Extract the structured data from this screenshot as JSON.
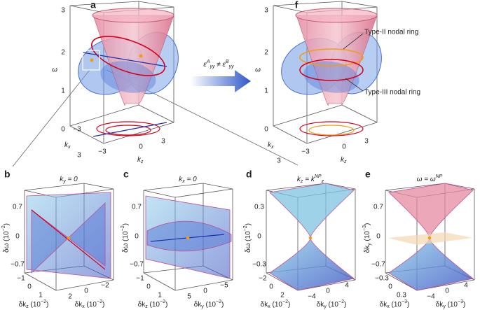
{
  "panels": [
    {
      "letter": "a",
      "z_label": "ω",
      "z_ticks": [
        "3",
        "2",
        "1"
      ],
      "kx_label": [
        {
          "t": "k"
        },
        {
          "t": "x",
          "pos": "sub"
        }
      ],
      "kx_ticks": [
        "0",
        "−3",
        "3"
      ],
      "kz_label": [
        {
          "t": "k"
        },
        {
          "t": "z",
          "pos": "sub"
        }
      ],
      "kz_ticks": [
        "−3",
        "0",
        "3"
      ]
    },
    {
      "letter": "f",
      "z_label": "ω",
      "z_ticks": [
        "3",
        "2",
        "1"
      ],
      "kx_label": [
        {
          "t": "k"
        },
        {
          "t": "x",
          "pos": "sub"
        }
      ],
      "kx_ticks": [
        "0",
        "3"
      ],
      "kz_label": [
        {
          "t": "k"
        },
        {
          "t": "z",
          "pos": "sub"
        }
      ],
      "kz_ticks": [
        "−3",
        "0",
        "3"
      ],
      "annotations": [
        "Type-II nodal ring",
        "Type-III nodal ring"
      ]
    }
  ],
  "arrow_label": [
    {
      "t": "ε"
    },
    {
      "t": "A",
      "pos": "sup"
    },
    {
      "t": "yy",
      "pos": "sub"
    },
    {
      "t": " ≠ ε"
    },
    {
      "t": "B",
      "pos": "sup"
    },
    {
      "t": "yy",
      "pos": "sub"
    }
  ],
  "insets": [
    {
      "letter": "b",
      "title": [
        {
          "t": "k"
        },
        {
          "t": "y",
          "pos": "sub"
        },
        {
          "t": " = 0"
        }
      ],
      "y_label": [
        {
          "t": "δω (10"
        },
        {
          "t": "−2",
          "pos": "sup"
        },
        {
          "t": ")"
        }
      ],
      "y_ticks": [
        "0.7",
        "0",
        "−0.7"
      ],
      "left_label": [
        {
          "t": "δk"
        },
        {
          "t": "z",
          "pos": "sub"
        },
        {
          "t": " (10"
        },
        {
          "t": "−2",
          "pos": "sup"
        },
        {
          "t": ")"
        }
      ],
      "left_ticks": [
        "−1",
        "0",
        "1"
      ],
      "right_label": [
        {
          "t": "δk"
        },
        {
          "t": "x",
          "pos": "sub"
        },
        {
          "t": " (10"
        },
        {
          "t": "−2",
          "pos": "sup"
        },
        {
          "t": ")"
        }
      ],
      "right_ticks": [
        "2",
        "0",
        "−2"
      ]
    },
    {
      "letter": "c",
      "title": [
        {
          "t": "k"
        },
        {
          "t": "x",
          "pos": "sub"
        },
        {
          "t": " = 0"
        }
      ],
      "y_label": [
        {
          "t": "δω (10"
        },
        {
          "t": "−2",
          "pos": "sup"
        },
        {
          "t": ")"
        }
      ],
      "y_ticks": [
        "0.7",
        "0",
        "−0.7"
      ],
      "left_label": [
        {
          "t": "δk"
        },
        {
          "t": "z",
          "pos": "sub"
        },
        {
          "t": " (10"
        },
        {
          "t": "−2",
          "pos": "sup"
        },
        {
          "t": ")"
        }
      ],
      "left_ticks": [
        "−1",
        "0",
        "1"
      ],
      "right_label": [
        {
          "t": "δk"
        },
        {
          "t": "y",
          "pos": "sub"
        },
        {
          "t": " (10"
        },
        {
          "t": "−2",
          "pos": "sup"
        },
        {
          "t": ")"
        }
      ],
      "right_ticks": [
        "5",
        "0",
        "−5"
      ]
    },
    {
      "letter": "d",
      "title": [
        {
          "t": "k"
        },
        {
          "t": "z",
          "pos": "sub"
        },
        {
          "t": " = k"
        },
        {
          "t": "NP",
          "pos": "sup"
        },
        {
          "t": "z",
          "pos": "sub"
        }
      ],
      "y_label": [
        {
          "t": "δω (10"
        },
        {
          "t": "−2",
          "pos": "sup"
        },
        {
          "t": ")"
        }
      ],
      "y_ticks": [
        "0.3",
        "0",
        "−0.3"
      ],
      "left_label": [
        {
          "t": "δk"
        },
        {
          "t": "x",
          "pos": "sub"
        },
        {
          "t": " (10"
        },
        {
          "t": "−2",
          "pos": "sup"
        },
        {
          "t": ")"
        }
      ],
      "left_ticks": [
        "−2",
        "0",
        "2"
      ],
      "right_label": [
        {
          "t": "δk"
        },
        {
          "t": "y",
          "pos": "sub"
        },
        {
          "t": " (10"
        },
        {
          "t": "−2",
          "pos": "sup"
        },
        {
          "t": ")"
        }
      ],
      "right_ticks": [
        "−4",
        "0",
        "4"
      ]
    },
    {
      "letter": "e",
      "title": [
        {
          "t": "ω = ω"
        },
        {
          "t": "NP",
          "pos": "sup"
        }
      ],
      "y_label": [
        {
          "t": "δk"
        },
        {
          "t": "y",
          "pos": "sub"
        },
        {
          "t": " (10"
        },
        {
          "t": "−3",
          "pos": "sup"
        },
        {
          "t": ")"
        }
      ],
      "y_ticks": [
        "0.7",
        "0",
        "−0.7"
      ],
      "left_label": [
        {
          "t": "δk"
        },
        {
          "t": "x",
          "pos": "sub"
        },
        {
          "t": " (10"
        },
        {
          "t": "−3",
          "pos": "sup"
        },
        {
          "t": ")"
        }
      ],
      "left_ticks": [
        "−0.3",
        "0",
        "0.3"
      ],
      "right_label": [
        {
          "t": "δk"
        },
        {
          "t": "y",
          "pos": "sub"
        },
        {
          "t": " (10"
        },
        {
          "t": "−3",
          "pos": "sup"
        },
        {
          "t": ")"
        }
      ],
      "right_ticks": [
        "−4",
        "0",
        "4"
      ]
    }
  ]
}
